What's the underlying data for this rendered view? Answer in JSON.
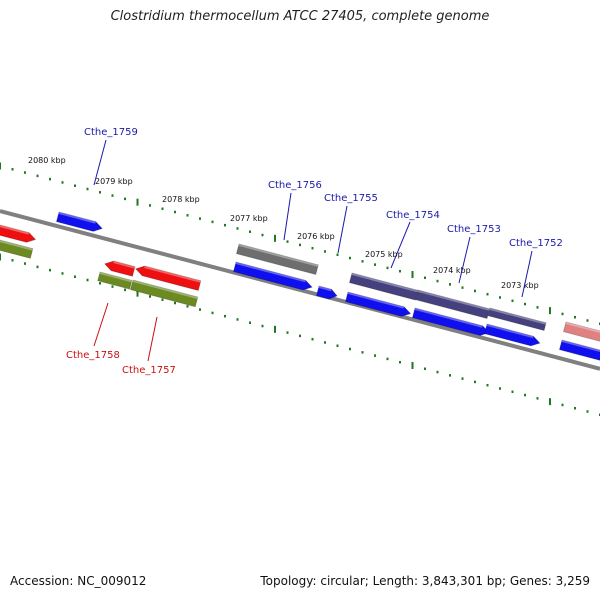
{
  "title": "Clostridium thermocellum ATCC 27405, complete genome",
  "footer": {
    "accession": "Accession: NC_009012",
    "summary": "Topology: circular; Length: 3,843,301 bp; Genes: 3,259"
  },
  "colors": {
    "backbone": "#808080",
    "tick": "#1e7a1e",
    "cds_blue": "#1010ee",
    "cds_red": "#ee1010",
    "gene_gray": "#6e6e6e",
    "gene_purple": "#45407e",
    "gene_olive": "#6b8a22",
    "gene_pink": "#e08080",
    "label_blue": "#1a1aa8",
    "label_red": "#cc1010"
  },
  "kbp_labels": [
    "2080 kbp",
    "2079 kbp",
    "2078 kbp",
    "2077 kbp",
    "2076 kbp",
    "2075 kbp",
    "2074 kbp",
    "2073 kbp"
  ],
  "gene_labels_top": [
    "Cthe_1759",
    "Cthe_1756",
    "Cthe_1755",
    "Cthe_1754",
    "Cthe_1753",
    "Cthe_1752"
  ],
  "gene_labels_bottom": [
    "Cthe_1758",
    "Cthe_1757"
  ]
}
